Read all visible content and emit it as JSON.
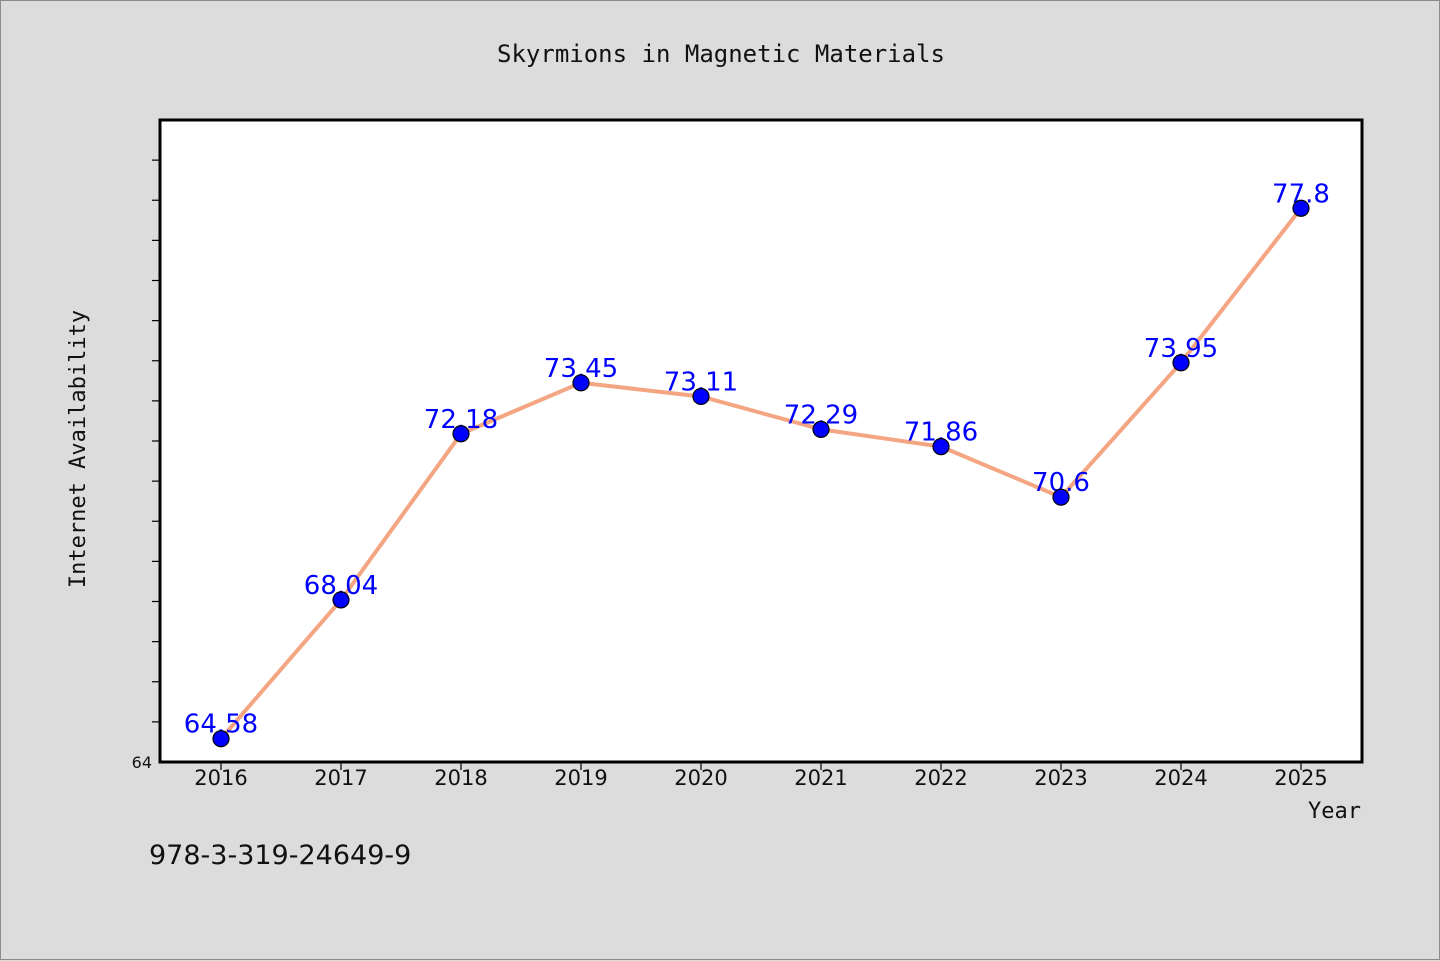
{
  "chart_data": {
    "type": "line",
    "title": "Skyrmions in Magnetic Materials",
    "xlabel": "Year",
    "ylabel": "Internet Availability",
    "categories": [
      "2016",
      "2017",
      "2018",
      "2019",
      "2020",
      "2021",
      "2022",
      "2023",
      "2024",
      "2025"
    ],
    "series": [
      {
        "values": [
          64.58,
          68.04,
          72.18,
          73.45,
          73.11,
          72.29,
          71.86,
          70.6,
          73.95,
          77.8
        ],
        "data_labels": [
          "64.58",
          "68.04",
          "72.18",
          "73.45",
          "73.11",
          "72.29",
          "71.86",
          "70.6",
          "73.95",
          "77.8"
        ]
      }
    ],
    "ylim": [
      64,
      80
    ],
    "y_tick_labels": [
      "64"
    ],
    "grid": false,
    "legend": "none",
    "colors": {
      "line": "#f4a582",
      "marker": "#0000ff",
      "data_label": "#0000ff",
      "background": "#dcdcdc",
      "plot_area": "#ffffff"
    }
  },
  "footer": {
    "code": "978-3-319-24649-9"
  }
}
